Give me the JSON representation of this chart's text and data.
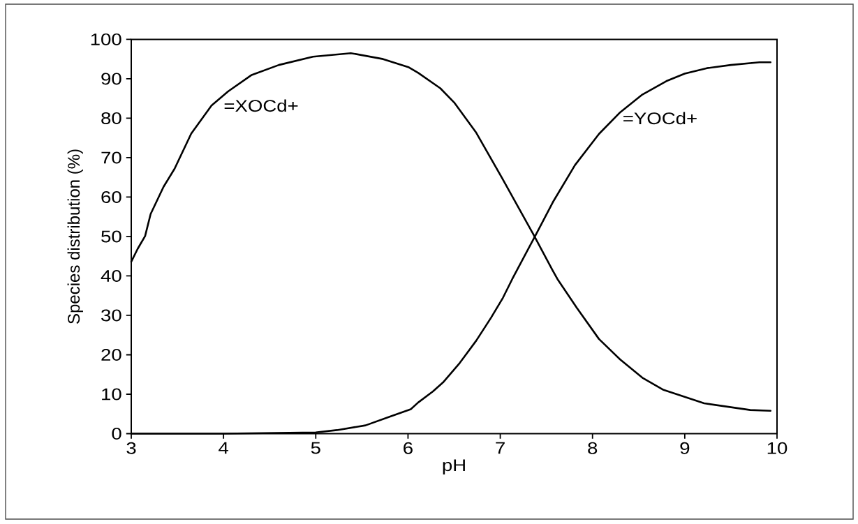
{
  "chart_data": {
    "type": "line",
    "xlabel": "pH",
    "ylabel": "Species distribution (%)",
    "xlim": [
      3,
      10
    ],
    "ylim": [
      0,
      100
    ],
    "xticks": [
      3,
      4,
      5,
      6,
      7,
      8,
      9,
      10
    ],
    "yticks": [
      0,
      10,
      20,
      30,
      40,
      50,
      60,
      70,
      80,
      90,
      100
    ],
    "line_style": "solid",
    "series": [
      {
        "name": "=XOCd+",
        "color": "#000000",
        "x": [
          3.0,
          3.07,
          3.15,
          3.21,
          3.35,
          3.47,
          3.65,
          3.87,
          4.05,
          4.3,
          4.6,
          4.97,
          5.38,
          5.73,
          6.01,
          6.11,
          6.35,
          6.5,
          6.74,
          7.03,
          7.36,
          7.57,
          7.62,
          7.83,
          8.07,
          8.3,
          8.54,
          8.77,
          9.21,
          9.71,
          9.93
        ],
        "values": [
          43.6,
          46.9,
          50.1,
          55.7,
          62.6,
          67.2,
          76.1,
          83.2,
          86.8,
          90.9,
          93.5,
          95.6,
          96.5,
          95.0,
          92.9,
          91.5,
          87.6,
          84,
          76.3,
          64.4,
          50.5,
          41.3,
          39.2,
          31.9,
          24.0,
          18.8,
          14.2,
          11.1,
          7.7,
          6.0,
          5.8
        ]
      },
      {
        "name": "=YOCd+",
        "color": "#000000",
        "x": [
          3.0,
          4.0,
          5.0,
          5.23,
          5.54,
          5.79,
          6.03,
          6.11,
          6.27,
          6.38,
          6.56,
          6.74,
          6.9,
          7.03,
          7.13,
          7.38,
          7.57,
          7.81,
          8.07,
          8.3,
          8.54,
          8.8,
          9.0,
          9.24,
          9.5,
          9.81,
          9.93
        ],
        "values": [
          0,
          0,
          0.3,
          0.9,
          2.1,
          4.2,
          6.2,
          7.9,
          10.7,
          13.0,
          17.9,
          23.6,
          29.4,
          34.5,
          39.2,
          50.2,
          58.7,
          68.1,
          76.0,
          81.5,
          86.0,
          89.4,
          91.3,
          92.7,
          93.5,
          94.2,
          94.2
        ]
      }
    ]
  }
}
